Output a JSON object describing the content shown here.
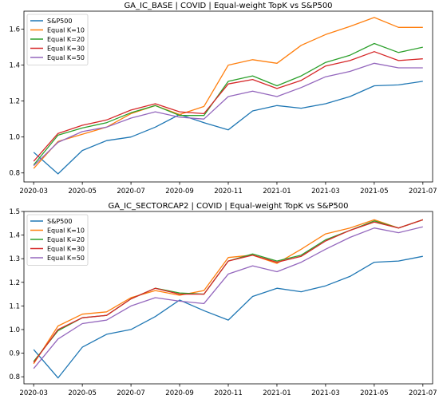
{
  "chart_data": [
    {
      "type": "line",
      "title": "GA_IC_BASE | COVID | Equal-weight TopK vs S&P500",
      "x": [
        "2020-03",
        "2020-04",
        "2020-05",
        "2020-06",
        "2020-07",
        "2020-08",
        "2020-09",
        "2020-10",
        "2020-11",
        "2020-12",
        "2021-01",
        "2021-02",
        "2021-03",
        "2021-04",
        "2021-05",
        "2021-06",
        "2021-07"
      ],
      "x_tick_labels": [
        "2020-03",
        "2020-05",
        "2020-07",
        "2020-09",
        "2020-11",
        "2021-01",
        "2021-03",
        "2021-05",
        "2021-07"
      ],
      "ylim": [
        0.75,
        1.7
      ],
      "y_ticks": [
        0.8,
        1.0,
        1.2,
        1.4,
        1.6
      ],
      "y_tick_labels": [
        "0.8",
        "1.0",
        "1.2",
        "1.4",
        "1.6"
      ],
      "legend": "top-left",
      "grid": false,
      "series": [
        {
          "name": "S&P500",
          "color": "#1f77b4",
          "values": [
            0.915,
            0.795,
            0.925,
            0.98,
            1.0,
            1.055,
            1.125,
            1.08,
            1.04,
            1.145,
            1.175,
            1.16,
            1.185,
            1.225,
            1.285,
            1.29,
            1.31
          ]
        },
        {
          "name": "Equal K=10",
          "color": "#ff7f0e",
          "values": [
            0.825,
            0.975,
            1.015,
            1.055,
            1.13,
            1.175,
            1.125,
            1.17,
            1.4,
            1.43,
            1.41,
            1.51,
            1.57,
            1.615,
            1.665,
            1.61,
            1.61
          ]
        },
        {
          "name": "Equal K=20",
          "color": "#2ca02c",
          "values": [
            0.845,
            1.01,
            1.05,
            1.08,
            1.135,
            1.175,
            1.12,
            1.12,
            1.31,
            1.34,
            1.285,
            1.34,
            1.415,
            1.455,
            1.52,
            1.47,
            1.5
          ]
        },
        {
          "name": "Equal K=30",
          "color": "#d62728",
          "values": [
            0.865,
            1.02,
            1.065,
            1.095,
            1.15,
            1.185,
            1.14,
            1.13,
            1.295,
            1.32,
            1.27,
            1.315,
            1.395,
            1.425,
            1.475,
            1.425,
            1.435
          ]
        },
        {
          "name": "Equal K=50",
          "color": "#9467bd",
          "values": [
            0.84,
            0.97,
            1.03,
            1.055,
            1.105,
            1.14,
            1.11,
            1.1,
            1.225,
            1.255,
            1.225,
            1.275,
            1.335,
            1.365,
            1.41,
            1.385,
            1.385
          ]
        }
      ]
    },
    {
      "type": "line",
      "title": "GA_IC_SECTORCAP2 | COVID | Equal-weight TopK vs S&P500",
      "x": [
        "2020-03",
        "2020-04",
        "2020-05",
        "2020-06",
        "2020-07",
        "2020-08",
        "2020-09",
        "2020-10",
        "2020-11",
        "2020-12",
        "2021-01",
        "2021-02",
        "2021-03",
        "2021-04",
        "2021-05",
        "2021-06",
        "2021-07"
      ],
      "x_tick_labels": [
        "2020-03",
        "2020-05",
        "2020-07",
        "2020-09",
        "2020-11",
        "2021-01",
        "2021-03",
        "2021-05",
        "2021-07"
      ],
      "ylim": [
        0.77,
        1.5
      ],
      "y_ticks": [
        0.8,
        0.9,
        1.0,
        1.1,
        1.2,
        1.3,
        1.4,
        1.5
      ],
      "y_tick_labels": [
        "0.8",
        "0.9",
        "1.0",
        "1.1",
        "1.2",
        "1.3",
        "1.4",
        "1.5"
      ],
      "legend": "top-left",
      "grid": false,
      "series": [
        {
          "name": "S&P500",
          "color": "#1f77b4",
          "values": [
            0.915,
            0.795,
            0.925,
            0.98,
            1.0,
            1.055,
            1.125,
            1.08,
            1.04,
            1.14,
            1.175,
            1.16,
            1.185,
            1.225,
            1.285,
            1.29,
            1.31
          ]
        },
        {
          "name": "Equal K=10",
          "color": "#ff7f0e",
          "values": [
            0.855,
            1.015,
            1.065,
            1.075,
            1.135,
            1.165,
            1.145,
            1.165,
            1.305,
            1.315,
            1.28,
            1.34,
            1.405,
            1.43,
            1.465,
            1.43,
            1.465
          ]
        },
        {
          "name": "Equal K=20",
          "color": "#2ca02c",
          "values": [
            0.865,
            0.995,
            1.05,
            1.06,
            1.13,
            1.175,
            1.155,
            1.15,
            1.29,
            1.32,
            1.29,
            1.315,
            1.38,
            1.42,
            1.46,
            1.43,
            1.465
          ]
        },
        {
          "name": "Equal K=30",
          "color": "#d62728",
          "values": [
            0.86,
            1.0,
            1.05,
            1.06,
            1.13,
            1.175,
            1.15,
            1.15,
            1.29,
            1.315,
            1.285,
            1.31,
            1.375,
            1.42,
            1.455,
            1.43,
            1.465
          ]
        },
        {
          "name": "Equal K=50",
          "color": "#9467bd",
          "values": [
            0.835,
            0.96,
            1.025,
            1.04,
            1.1,
            1.135,
            1.12,
            1.11,
            1.235,
            1.27,
            1.245,
            1.285,
            1.34,
            1.39,
            1.43,
            1.41,
            1.435
          ]
        }
      ]
    }
  ]
}
